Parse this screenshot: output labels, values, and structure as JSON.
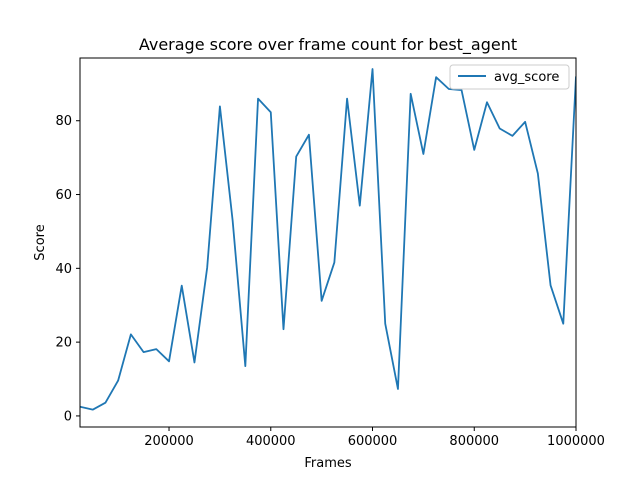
{
  "chart_data": {
    "type": "line",
    "title": "Average score over frame count for best_agent",
    "xlabel": "Frames",
    "ylabel": "Score",
    "xlim": [
      25000,
      1000000
    ],
    "ylim": [
      -3,
      97
    ],
    "xticks": [
      200000,
      400000,
      600000,
      800000,
      1000000
    ],
    "xtick_labels": [
      "200000",
      "400000",
      "600000",
      "800000",
      "1000000"
    ],
    "yticks": [
      0,
      20,
      40,
      60,
      80
    ],
    "ytick_labels": [
      "0",
      "20",
      "40",
      "60",
      "80"
    ],
    "grid": false,
    "legend_position": "top-right",
    "series": [
      {
        "name": "avg_score",
        "color": "#1f77b4",
        "x": [
          25000,
          50000,
          75000,
          100000,
          125000,
          150000,
          175000,
          200000,
          225000,
          250000,
          275000,
          300000,
          325000,
          350000,
          375000,
          400000,
          425000,
          450000,
          475000,
          500000,
          525000,
          550000,
          575000,
          600000,
          625000,
          650000,
          675000,
          700000,
          725000,
          750000,
          775000,
          800000,
          825000,
          850000,
          875000,
          900000,
          925000,
          950000,
          975000,
          1000000
        ],
        "y": [
          2.5,
          1.7,
          3.6,
          9.6,
          22.1,
          17.3,
          18.1,
          14.8,
          35.3,
          14.5,
          40.2,
          83.9,
          53.0,
          13.5,
          86.0,
          82.3,
          23.5,
          70.3,
          76.2,
          31.2,
          41.6,
          86.0,
          57.0,
          94.0,
          25.0,
          7.3,
          87.3,
          71.0,
          91.8,
          88.6,
          88.3,
          72.1,
          85.0,
          77.9,
          75.9,
          79.7,
          65.7,
          35.4,
          25.0,
          92.0
        ]
      }
    ]
  }
}
